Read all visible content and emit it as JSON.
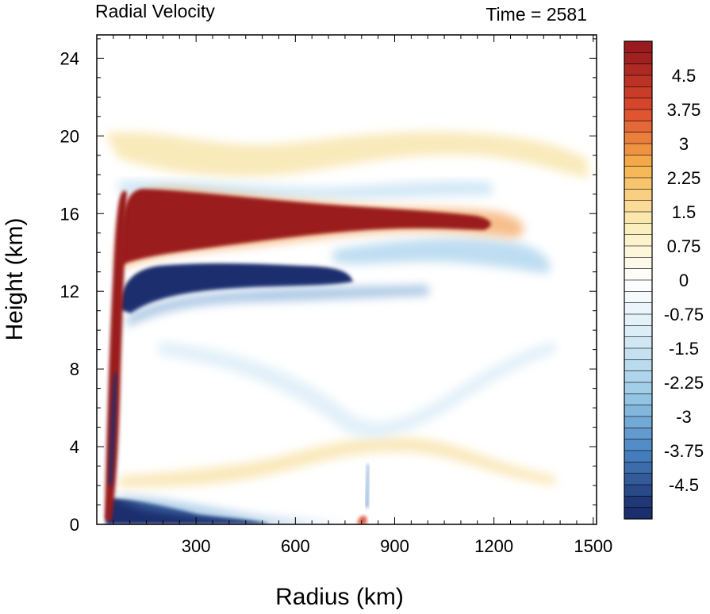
{
  "chart_data": {
    "type": "heatmap",
    "title": "Radial Velocity",
    "subtitle": "Time = 2581",
    "xlabel": "Radius (km)",
    "ylabel": "Height (km)",
    "x_range": [
      0,
      1510
    ],
    "y_range": [
      0,
      25.2
    ],
    "x_ticks": [
      300,
      600,
      900,
      1200,
      1500
    ],
    "y_ticks": [
      0,
      4,
      8,
      12,
      16,
      20,
      24
    ],
    "colorbar": {
      "min": -5.25,
      "max": 5.25,
      "step": 0.25,
      "labels": [
        "4.5",
        "3.75",
        "3",
        "2.25",
        "1.5",
        "0.75",
        "0",
        "-0.75",
        "-1.5",
        "-2.25",
        "-3",
        "-3.75",
        "-4.5"
      ],
      "label_values": [
        4.5,
        3.75,
        3,
        2.25,
        1.5,
        0.75,
        0,
        -0.75,
        -1.5,
        -2.25,
        -3,
        -3.75,
        -4.5
      ],
      "colors": {
        "strong_negative": "#1b2f6e",
        "neutral": "#ffffff",
        "strong_positive": "#9a1b1f"
      }
    },
    "features": [
      {
        "kind": "outflow_jet",
        "sign": "positive",
        "value": 5.0,
        "radius_km": [
          60,
          1300
        ],
        "height_km": [
          14.0,
          17.2
        ]
      },
      {
        "kind": "inflow_layer_upper",
        "sign": "negative",
        "value": -5.0,
        "radius_km": [
          60,
          800
        ],
        "height_km": [
          11.5,
          13.5
        ]
      },
      {
        "kind": "eyewall_updraft_edge",
        "sign": "positive",
        "value": 5.0,
        "radius_km": [
          30,
          90
        ],
        "height_km": [
          0.3,
          17.0
        ]
      },
      {
        "kind": "boundary_layer_inflow",
        "sign": "negative",
        "value": -5.0,
        "radius_km": [
          30,
          700
        ],
        "height_km": [
          0,
          1.4
        ]
      },
      {
        "kind": "weak_upper_outflow",
        "sign": "positive",
        "value": 1.0,
        "radius_km": [
          60,
          1500
        ],
        "height_km": [
          17.5,
          20.5
        ]
      },
      {
        "kind": "weak_midlevel_outflow",
        "sign": "positive",
        "value": 0.8,
        "radius_km": [
          150,
          1500
        ],
        "height_km": [
          2.0,
          4.5
        ]
      }
    ]
  }
}
